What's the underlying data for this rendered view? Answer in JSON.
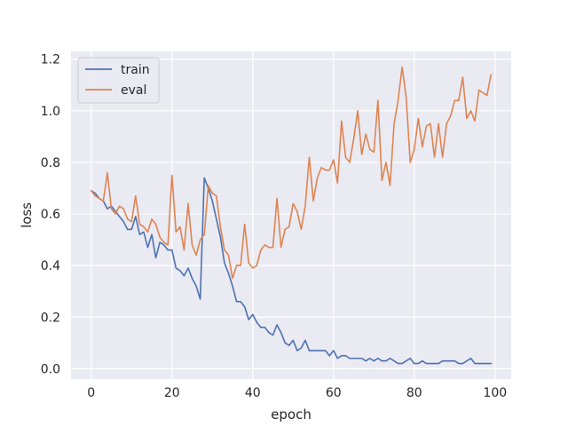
{
  "chart_data": {
    "type": "line",
    "title": "",
    "xlabel": "epoch",
    "ylabel": "loss",
    "xlim": [
      -5,
      104
    ],
    "ylim": [
      -0.04,
      1.23
    ],
    "xticks": [
      0,
      20,
      40,
      60,
      80,
      100
    ],
    "xtick_labels": [
      "0",
      "20",
      "40",
      "60",
      "80",
      "100"
    ],
    "yticks": [
      0.0,
      0.2,
      0.4,
      0.6,
      0.8,
      1.0,
      1.2
    ],
    "ytick_labels": [
      "0.0",
      "0.2",
      "0.4",
      "0.6",
      "0.8",
      "1.0",
      "1.2"
    ],
    "grid": true,
    "legend_position": "top-left",
    "background": "#eaeaf2",
    "series": [
      {
        "name": "train",
        "color": "#4c72b0",
        "values": [
          0.69,
          0.68,
          0.66,
          0.65,
          0.62,
          0.63,
          0.61,
          0.59,
          0.57,
          0.54,
          0.54,
          0.59,
          0.52,
          0.53,
          0.47,
          0.52,
          0.43,
          0.49,
          0.48,
          0.46,
          0.46,
          0.39,
          0.38,
          0.36,
          0.39,
          0.35,
          0.32,
          0.27,
          0.74,
          0.7,
          0.65,
          0.58,
          0.51,
          0.41,
          0.37,
          0.32,
          0.26,
          0.26,
          0.24,
          0.19,
          0.21,
          0.18,
          0.16,
          0.16,
          0.14,
          0.13,
          0.17,
          0.14,
          0.1,
          0.09,
          0.11,
          0.07,
          0.08,
          0.11,
          0.07,
          0.07,
          0.07,
          0.07,
          0.07,
          0.05,
          0.07,
          0.04,
          0.05,
          0.05,
          0.04,
          0.04,
          0.04,
          0.04,
          0.03,
          0.04,
          0.03,
          0.04,
          0.03,
          0.03,
          0.04,
          0.03,
          0.02,
          0.02,
          0.03,
          0.04,
          0.02,
          0.02,
          0.03,
          0.02,
          0.02,
          0.02,
          0.02,
          0.03,
          0.03,
          0.03,
          0.03,
          0.02,
          0.02,
          0.03,
          0.04,
          0.02,
          0.02,
          0.02,
          0.02,
          0.02
        ]
      },
      {
        "name": "eval",
        "color": "#dd8452",
        "values": [
          0.69,
          0.67,
          0.66,
          0.65,
          0.76,
          0.62,
          0.6,
          0.63,
          0.62,
          0.58,
          0.57,
          0.67,
          0.56,
          0.55,
          0.53,
          0.58,
          0.56,
          0.51,
          0.49,
          0.48,
          0.75,
          0.53,
          0.55,
          0.46,
          0.64,
          0.48,
          0.44,
          0.5,
          0.52,
          0.71,
          0.68,
          0.67,
          0.55,
          0.46,
          0.44,
          0.35,
          0.4,
          0.4,
          0.56,
          0.41,
          0.39,
          0.4,
          0.46,
          0.48,
          0.47,
          0.47,
          0.66,
          0.47,
          0.54,
          0.55,
          0.64,
          0.61,
          0.54,
          0.63,
          0.82,
          0.65,
          0.74,
          0.78,
          0.77,
          0.77,
          0.81,
          0.72,
          0.96,
          0.82,
          0.8,
          0.89,
          1.0,
          0.83,
          0.91,
          0.85,
          0.84,
          1.04,
          0.73,
          0.8,
          0.71,
          0.95,
          1.04,
          1.17,
          1.05,
          0.8,
          0.85,
          0.97,
          0.86,
          0.94,
          0.95,
          0.82,
          0.95,
          0.82,
          0.95,
          0.98,
          1.04,
          1.04,
          1.13,
          0.97,
          1.0,
          0.96,
          1.08,
          1.07,
          1.06,
          1.14
        ]
      }
    ]
  }
}
